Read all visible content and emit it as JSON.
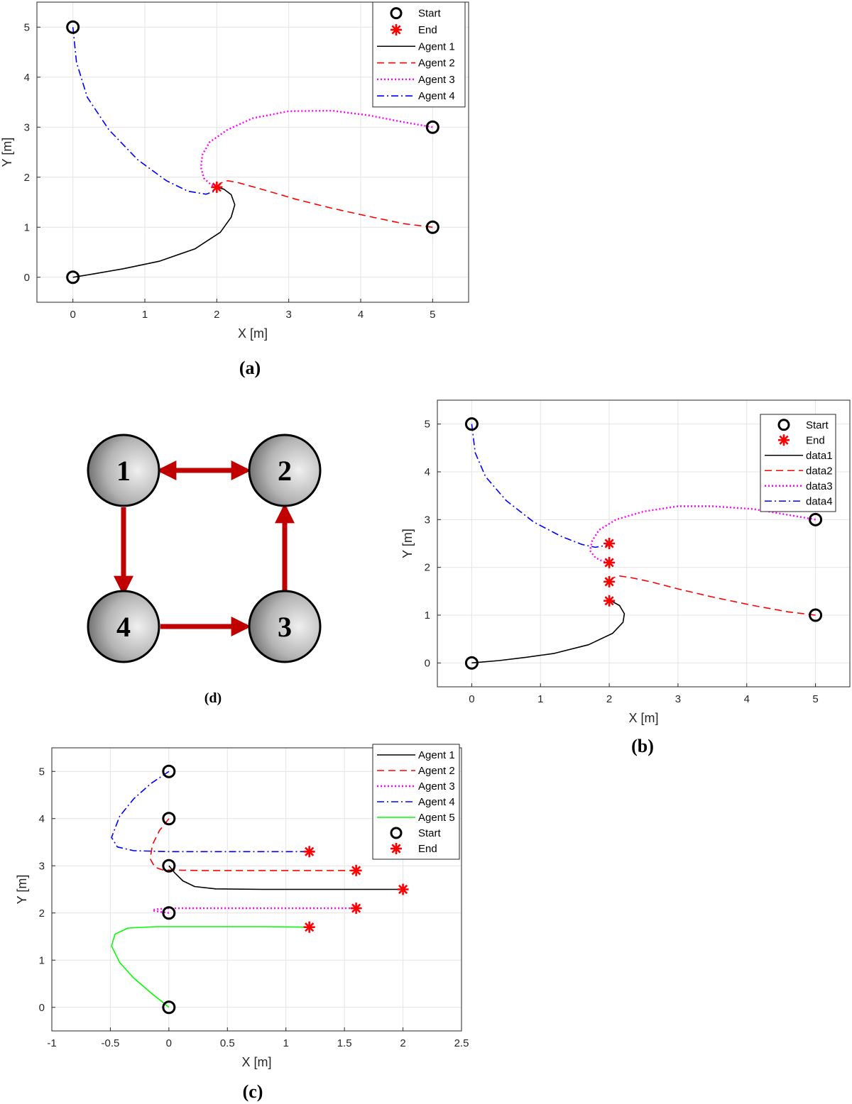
{
  "chart_data": [
    {
      "id": "a",
      "type": "line",
      "caption": "(a)",
      "xlabel": "X [m]",
      "ylabel": "Y [m]",
      "xlim": [
        -0.5,
        5.5
      ],
      "ylim": [
        -0.5,
        5.5
      ],
      "xticks": [
        0,
        1,
        2,
        3,
        4,
        5
      ],
      "yticks": [
        0,
        1,
        2,
        3,
        4,
        5
      ],
      "grid": true,
      "legend_position": "top-right",
      "legend": [
        "Start",
        "End",
        "Agent 1",
        "Agent 2",
        "Agent 3",
        "Agent 4"
      ],
      "start_points": [
        [
          0,
          0
        ],
        [
          5,
          1
        ],
        [
          5,
          3
        ],
        [
          0,
          5
        ]
      ],
      "end_points": [
        [
          2,
          1.8
        ]
      ],
      "series": [
        {
          "name": "Agent 1",
          "color": "#000000",
          "style": "solid",
          "x": [
            0,
            0.3,
            0.7,
            1.2,
            1.7,
            2.05,
            2.2,
            2.25,
            2.2,
            2.1,
            2.0
          ],
          "y": [
            0,
            0.07,
            0.17,
            0.32,
            0.57,
            0.9,
            1.2,
            1.45,
            1.65,
            1.76,
            1.8
          ]
        },
        {
          "name": "Agent 2",
          "color": "#ff0000",
          "style": "dashed",
          "x": [
            5,
            4.6,
            4.1,
            3.6,
            3.1,
            2.6,
            2.3,
            2.15,
            2.05,
            2.0
          ],
          "y": [
            1,
            1.07,
            1.22,
            1.38,
            1.56,
            1.77,
            1.89,
            1.93,
            1.88,
            1.8
          ]
        },
        {
          "name": "Agent 3",
          "color": "#ff00ff",
          "style": "dotted",
          "x": [
            5,
            4.6,
            4.1,
            3.6,
            3.0,
            2.5,
            2.15,
            1.9,
            1.8,
            1.78,
            1.82,
            1.92,
            2.0
          ],
          "y": [
            3,
            3.1,
            3.24,
            3.33,
            3.32,
            3.18,
            2.95,
            2.7,
            2.45,
            2.2,
            1.98,
            1.85,
            1.8
          ]
        },
        {
          "name": "Agent 4",
          "color": "#0000ff",
          "style": "dashdot",
          "x": [
            0,
            0.05,
            0.2,
            0.5,
            0.9,
            1.3,
            1.6,
            1.85,
            1.97,
            2.0
          ],
          "y": [
            5,
            4.3,
            3.6,
            2.95,
            2.35,
            1.93,
            1.72,
            1.66,
            1.72,
            1.8
          ]
        }
      ]
    },
    {
      "id": "b",
      "type": "line",
      "caption": "(b)",
      "xlabel": "X [m]",
      "ylabel": "Y [m]",
      "xlim": [
        -0.5,
        5.5
      ],
      "ylim": [
        -0.5,
        5.5
      ],
      "xticks": [
        0,
        1,
        2,
        3,
        4,
        5
      ],
      "yticks": [
        0,
        1,
        2,
        3,
        4,
        5
      ],
      "grid": true,
      "legend_position": "top-right",
      "legend": [
        "Start",
        "End",
        "data1",
        "data2",
        "data3",
        "data4"
      ],
      "start_points": [
        [
          0,
          0
        ],
        [
          5,
          1
        ],
        [
          5,
          3
        ],
        [
          0,
          5
        ]
      ],
      "end_points": [
        [
          2,
          1.3
        ],
        [
          2,
          1.7
        ],
        [
          2,
          2.1
        ],
        [
          2,
          2.5
        ]
      ],
      "series": [
        {
          "name": "data1",
          "color": "#000000",
          "style": "solid",
          "x": [
            0,
            0.4,
            0.8,
            1.2,
            1.7,
            2.05,
            2.2,
            2.22,
            2.15,
            2.05,
            2.0
          ],
          "y": [
            0,
            0.05,
            0.12,
            0.2,
            0.38,
            0.62,
            0.85,
            1.03,
            1.2,
            1.28,
            1.3
          ]
        },
        {
          "name": "data2",
          "color": "#ff0000",
          "style": "dashed",
          "x": [
            5,
            4.6,
            4.1,
            3.5,
            3.0,
            2.6,
            2.3,
            2.15,
            2.05,
            2.0
          ],
          "y": [
            1,
            1.07,
            1.2,
            1.38,
            1.55,
            1.7,
            1.79,
            1.82,
            1.78,
            1.7
          ]
        },
        {
          "name": "data3",
          "color": "#ff00ff",
          "style": "dotted",
          "x": [
            5,
            4.6,
            4.1,
            3.5,
            3.0,
            2.5,
            2.1,
            1.85,
            1.75,
            1.72,
            1.8,
            1.92,
            2.0
          ],
          "y": [
            3,
            3.1,
            3.22,
            3.28,
            3.28,
            3.17,
            3.0,
            2.78,
            2.55,
            2.35,
            2.2,
            2.12,
            2.1
          ]
        },
        {
          "name": "data4",
          "color": "#0000ff",
          "style": "dashdot",
          "x": [
            0,
            0.05,
            0.2,
            0.5,
            0.9,
            1.3,
            1.6,
            1.8,
            1.95,
            2.0
          ],
          "y": [
            5,
            4.4,
            3.9,
            3.4,
            2.95,
            2.65,
            2.48,
            2.42,
            2.46,
            2.5
          ]
        }
      ]
    },
    {
      "id": "c",
      "type": "line",
      "caption": "(c)",
      "xlabel": "X [m]",
      "ylabel": "Y [m]",
      "xlim": [
        -1,
        2.5
      ],
      "ylim": [
        -0.5,
        5.5
      ],
      "xticks": [
        -1,
        -0.5,
        0,
        0.5,
        1,
        1.5,
        2,
        2.5
      ],
      "yticks": [
        0,
        1,
        2,
        3,
        4,
        5
      ],
      "grid": true,
      "legend_position": "top-right",
      "legend": [
        "Agent 1",
        "Agent 2",
        "Agent 3",
        "Agent 4",
        "Agent 5",
        "Start",
        "End"
      ],
      "start_points": [
        [
          0,
          3
        ],
        [
          0,
          4
        ],
        [
          0,
          2
        ],
        [
          0,
          5
        ],
        [
          0,
          0
        ]
      ],
      "end_points": [
        [
          2,
          2.5
        ],
        [
          1.6,
          2.9
        ],
        [
          1.6,
          2.1
        ],
        [
          1.2,
          3.3
        ],
        [
          1.2,
          1.7
        ]
      ],
      "series": [
        {
          "name": "Agent 1",
          "color": "#000000",
          "style": "solid",
          "x": [
            0,
            0.05,
            0.12,
            0.22,
            0.4,
            0.8,
            1.2,
            1.6,
            2.0
          ],
          "y": [
            3,
            2.85,
            2.68,
            2.56,
            2.51,
            2.5,
            2.5,
            2.5,
            2.5
          ]
        },
        {
          "name": "Agent 2",
          "color": "#ff0000",
          "style": "dashed",
          "x": [
            0,
            -0.08,
            -0.14,
            -0.16,
            -0.12,
            -0.05,
            0.3,
            0.8,
            1.2,
            1.6
          ],
          "y": [
            4,
            3.75,
            3.45,
            3.15,
            2.97,
            2.91,
            2.9,
            2.9,
            2.9,
            2.9
          ]
        },
        {
          "name": "Agent 3",
          "color": "#ff00ff",
          "style": "dotted",
          "x": [
            0,
            -0.06,
            -0.12,
            -0.14,
            -0.1,
            0.0,
            0.4,
            0.8,
            1.2,
            1.6
          ],
          "y": [
            2,
            2.02,
            2.04,
            2.06,
            2.08,
            2.1,
            2.1,
            2.1,
            2.1,
            2.1
          ]
        },
        {
          "name": "Agent 4",
          "color": "#0000ff",
          "style": "dashdot",
          "x": [
            0,
            -0.15,
            -0.3,
            -0.42,
            -0.49,
            -0.44,
            -0.3,
            0.0,
            0.4,
            0.8,
            1.2
          ],
          "y": [
            5,
            4.75,
            4.42,
            4.05,
            3.6,
            3.4,
            3.32,
            3.3,
            3.3,
            3.3,
            3.3
          ]
        },
        {
          "name": "Agent 5",
          "color": "#00ff00",
          "style": "solid",
          "x": [
            0,
            -0.15,
            -0.3,
            -0.42,
            -0.49,
            -0.46,
            -0.35,
            -0.1,
            0.3,
            0.8,
            1.2
          ],
          "y": [
            0,
            0.3,
            0.62,
            0.95,
            1.3,
            1.55,
            1.68,
            1.71,
            1.71,
            1.71,
            1.7
          ]
        }
      ]
    }
  ],
  "diagram_d": {
    "caption": "(d)",
    "nodes": [
      "1",
      "2",
      "3",
      "4"
    ],
    "edges": [
      [
        "1",
        "2",
        "bidirectional"
      ],
      [
        "1",
        "4",
        "directed"
      ],
      [
        "4",
        "3",
        "directed"
      ],
      [
        "3",
        "2",
        "directed"
      ]
    ],
    "edge_color": "#c00000"
  }
}
